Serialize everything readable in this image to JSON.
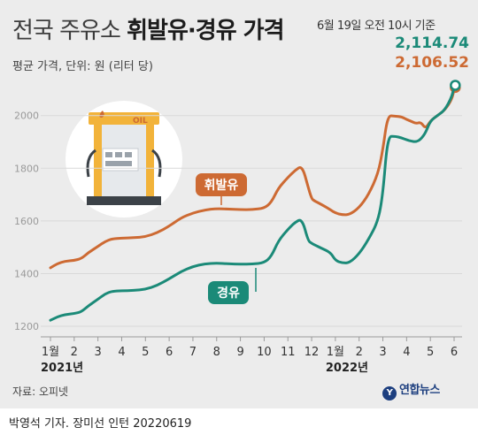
{
  "header": {
    "title_thin": "전국 주유소 ",
    "title_bold": "휘발유·경유 가격",
    "subtitle": "평균 가격, 단위: 원 (리터 당)",
    "date_note": "6월 19일 오전 10시 기준",
    "price_diesel": "2,114.74",
    "price_gasoline": "2,106.52"
  },
  "source": "자료: 오피넷",
  "logo": {
    "mark": "Y",
    "text": "연합뉴스"
  },
  "credit": "박영석 기자. 장미선 인턴  20220619",
  "colors": {
    "gasoline": "#cd6a33",
    "diesel": "#1b8a78",
    "grid": "#d9d9d9"
  },
  "icon": "gas-pump-icon",
  "icon_label": "OIL",
  "chart_data": {
    "type": "line",
    "y_ticks": [
      "1200",
      "1400",
      "1600",
      "1800",
      "2000"
    ],
    "ylim": [
      1180,
      2130
    ],
    "x_ticks": [
      "1월",
      "2",
      "3",
      "4",
      "5",
      "6",
      "7",
      "8",
      "9",
      "10",
      "11",
      "12",
      "1월",
      "2",
      "3",
      "4",
      "5",
      "6"
    ],
    "year_labels": [
      "2021년",
      "2022년"
    ],
    "legend_position": "inline labels",
    "grid": true,
    "series": [
      {
        "name": "휘발유",
        "x": [
          0,
          0.3,
          0.6,
          1,
          1.3,
          1.6,
          2,
          2.3,
          2.6,
          3,
          3.5,
          4,
          4.5,
          5,
          5.5,
          6,
          6.5,
          7,
          7.5,
          8,
          8.5,
          9,
          9.3,
          9.6,
          10,
          10.3,
          10.6,
          10.85,
          11,
          11.1,
          11.4,
          11.8,
          12,
          12.3,
          12.6,
          13,
          13.4,
          13.8,
          14,
          14.2,
          14.5,
          14.8,
          15,
          15.2,
          15.4,
          15.6,
          15.8,
          16,
          16.3,
          16.6,
          16.9,
          17,
          17.05
        ],
        "values": [
          1422,
          1438,
          1447,
          1450,
          1457,
          1480,
          1503,
          1522,
          1532,
          1535,
          1536,
          1540,
          1555,
          1580,
          1612,
          1630,
          1642,
          1647,
          1645,
          1643,
          1643,
          1648,
          1670,
          1725,
          1765,
          1792,
          1810,
          1730,
          1685,
          1677,
          1663,
          1642,
          1630,
          1623,
          1624,
          1650,
          1700,
          1780,
          1870,
          2000,
          1998,
          1995,
          1985,
          1978,
          1970,
          1975,
          1950,
          1980,
          2000,
          2020,
          2060,
          2100,
          2107
        ]
      },
      {
        "name": "경유",
        "x": [
          0,
          0.3,
          0.6,
          1,
          1.3,
          1.6,
          2,
          2.3,
          2.6,
          3,
          3.5,
          4,
          4.5,
          5,
          5.5,
          6,
          6.5,
          7,
          7.5,
          8,
          8.5,
          9,
          9.3,
          9.6,
          10,
          10.3,
          10.6,
          10.85,
          11,
          11.1,
          11.4,
          11.8,
          12,
          12.3,
          12.6,
          13,
          13.4,
          13.8,
          14,
          14.2,
          14.5,
          14.8,
          15,
          15.2,
          15.4,
          15.6,
          15.8,
          16,
          16.3,
          16.6,
          16.9,
          17,
          17.05
        ],
        "values": [
          1223,
          1236,
          1244,
          1248,
          1255,
          1278,
          1303,
          1323,
          1333,
          1335,
          1336,
          1340,
          1355,
          1380,
          1408,
          1427,
          1437,
          1440,
          1437,
          1436,
          1436,
          1441,
          1465,
          1525,
          1568,
          1595,
          1608,
          1525,
          1515,
          1510,
          1497,
          1480,
          1450,
          1440,
          1441,
          1475,
          1530,
          1600,
          1700,
          1920,
          1922,
          1915,
          1908,
          1903,
          1900,
          1910,
          1935,
          1980,
          2000,
          2020,
          2070,
          2110,
          2115
        ]
      }
    ]
  }
}
